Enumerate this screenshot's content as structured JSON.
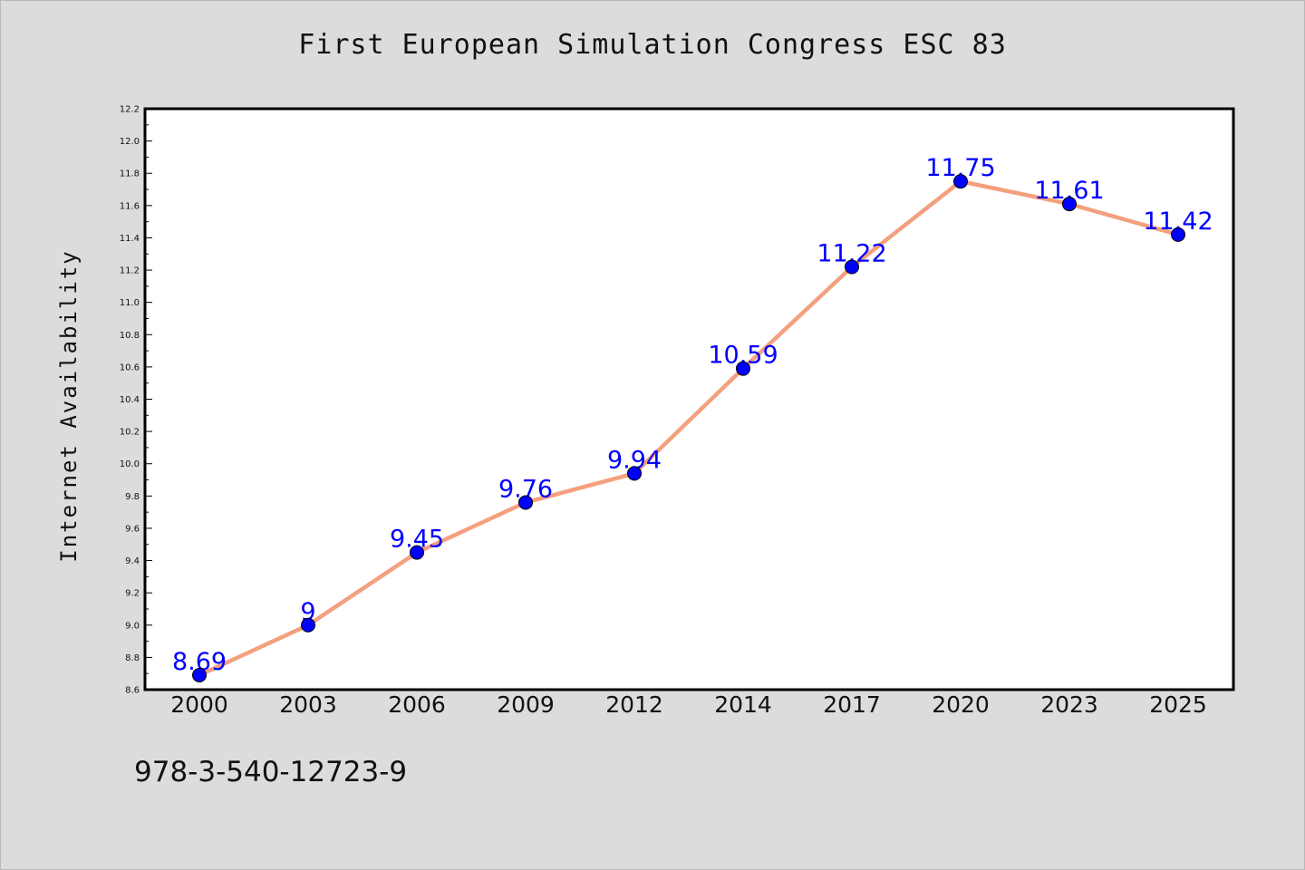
{
  "chart_data": {
    "type": "line",
    "title": "First European Simulation Congress ESC 83",
    "xlabel": "",
    "ylabel": "Internet Availability",
    "categories": [
      "2000",
      "2003",
      "2006",
      "2009",
      "2012",
      "2014",
      "2017",
      "2020",
      "2023",
      "2025"
    ],
    "series": [
      {
        "values": [
          8.69,
          9,
          9.45,
          9.76,
          9.94,
          10.59,
          11.22,
          11.75,
          11.61,
          11.42
        ],
        "data_labels": [
          "8.69",
          "9",
          "9.45",
          "9.76",
          "9.94",
          "10.59",
          "11.22",
          "11.75",
          "11.61",
          "11.42"
        ]
      }
    ],
    "ylim": [
      8.6,
      12.2
    ],
    "yticks": [
      "8.6",
      "8.8",
      "9.0",
      "9.2",
      "9.4",
      "9.6",
      "9.8",
      "10.0",
      "10.2",
      "10.4",
      "10.6",
      "10.8",
      "11.0",
      "11.2",
      "11.4",
      "11.6",
      "11.8",
      "12.0",
      "12.2"
    ],
    "grid": false,
    "legend": "none",
    "colors": {
      "line": "#f4a07e",
      "marker": "#0000ff",
      "data_label": "#0000ff",
      "background": "#dcdcdc",
      "plot_area": "#ffffff"
    }
  },
  "footer_text": "978-3-540-12723-9"
}
